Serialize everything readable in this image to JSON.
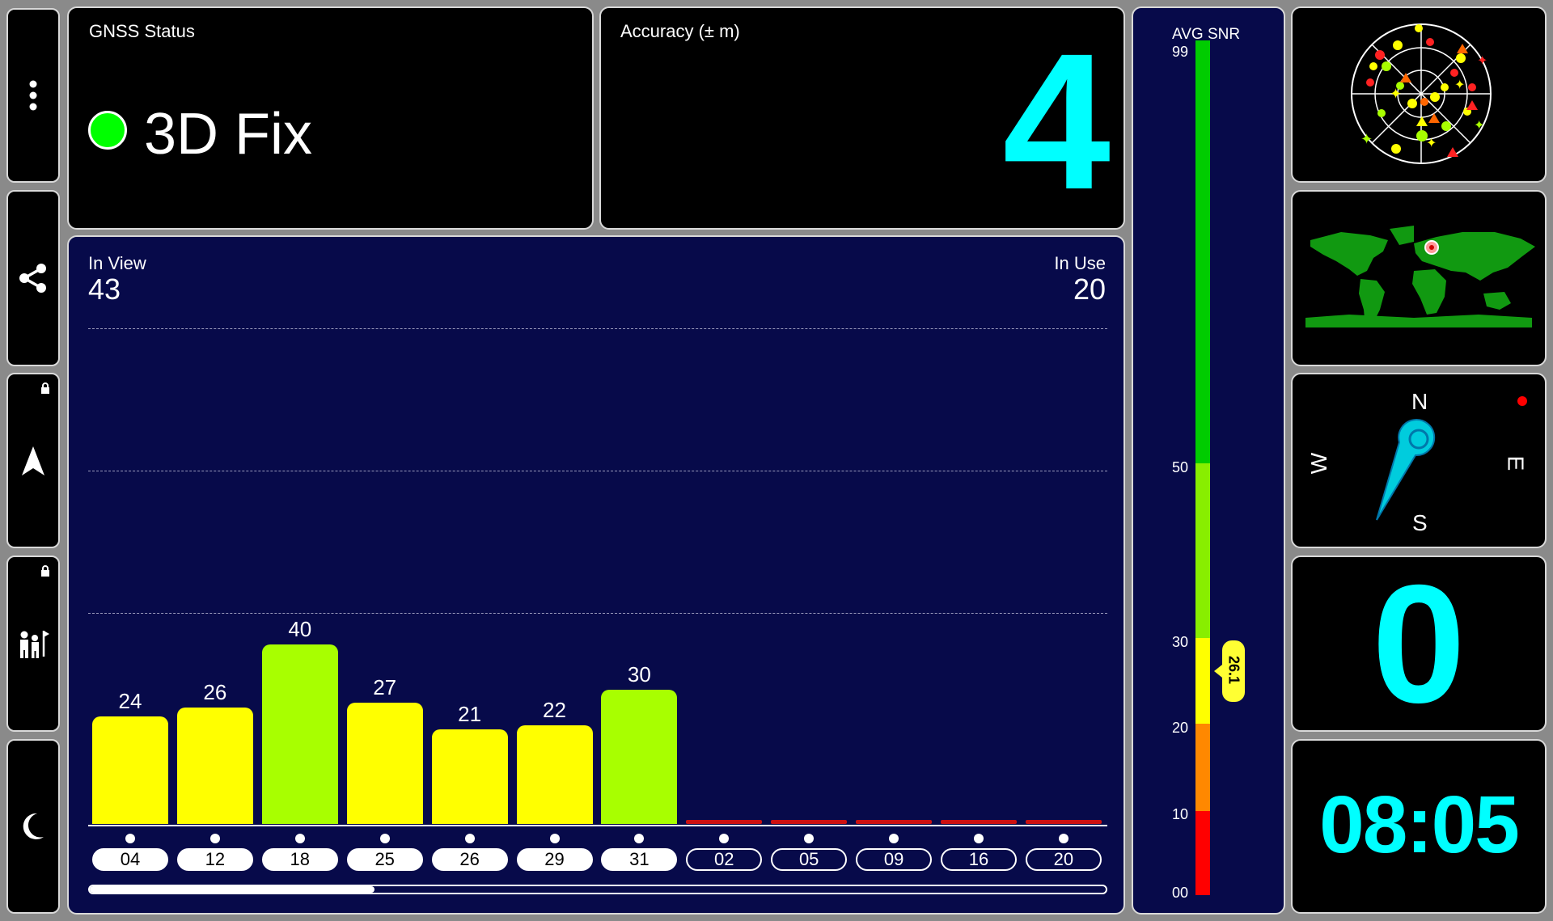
{
  "sidebar": {
    "buttons": [
      {
        "name": "more-menu-button",
        "icon": "more-vert-icon"
      },
      {
        "name": "share-button",
        "icon": "share-icon"
      },
      {
        "name": "navigation-button",
        "icon": "navigation-arrow-icon",
        "locked": true
      },
      {
        "name": "tour-guide-button",
        "icon": "tour-guide-icon",
        "locked": true
      },
      {
        "name": "night-mode-button",
        "icon": "moon-icon"
      }
    ]
  },
  "gnss": {
    "title": "GNSS Status",
    "fix": "3D Fix",
    "fix_color": "#00ff00"
  },
  "accuracy": {
    "title": "Accuracy (± m)",
    "value": "4",
    "color": "#00ffff"
  },
  "satellites": {
    "in_view_label": "In View",
    "in_view": "43",
    "in_use_label": "In Use",
    "in_use": "20"
  },
  "chart_data": {
    "type": "bar",
    "categories": [
      "04",
      "12",
      "18",
      "25",
      "26",
      "29",
      "31",
      "02",
      "05",
      "09",
      "16",
      "20"
    ],
    "values": [
      24,
      26,
      40,
      27,
      21,
      22,
      30,
      0,
      0,
      0,
      0,
      0
    ],
    "value_labels": [
      "24",
      "26",
      "40",
      "27",
      "21",
      "22",
      "30",
      "",
      "",
      "",
      "",
      ""
    ],
    "used": [
      true,
      true,
      true,
      true,
      true,
      true,
      true,
      false,
      false,
      false,
      false,
      false
    ],
    "ylim": [
      0,
      70
    ],
    "colors": {
      "low": "#ffff00",
      "mid": "#a8ff00",
      "none": "#cc1111"
    }
  },
  "snr": {
    "title": "AVG SNR",
    "ticks": [
      "99",
      "50",
      "30",
      "20",
      "10",
      "00"
    ],
    "avg": "26.1",
    "avg_value": 26.1
  },
  "compass": {
    "n": "N",
    "s": "S",
    "e": "E",
    "w": "W"
  },
  "speed": {
    "value": "0",
    "color": "#00ffff"
  },
  "clock": {
    "time": "08:05",
    "color": "#00ffff"
  },
  "scroll": {
    "position": 0.28
  }
}
